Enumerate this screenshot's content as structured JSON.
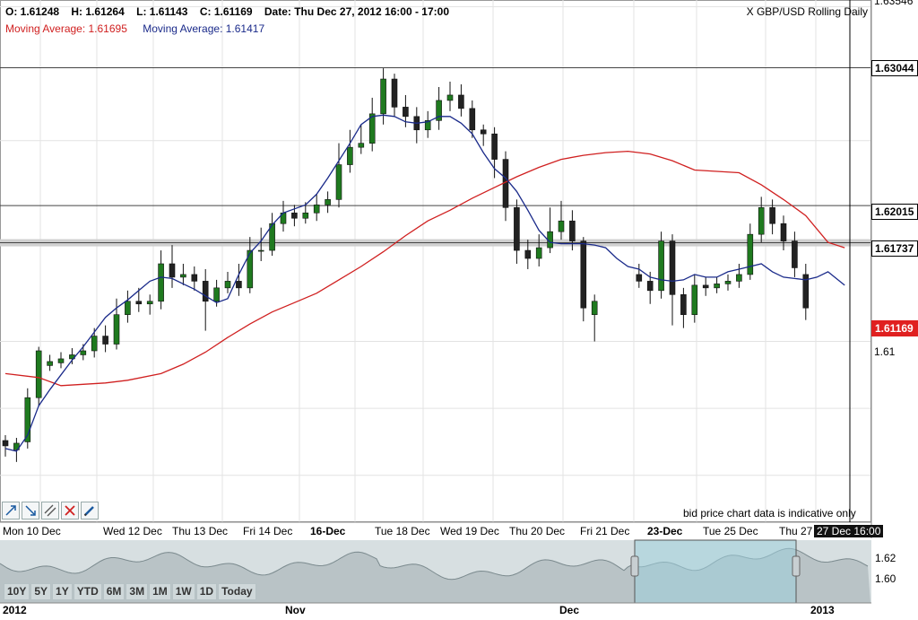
{
  "header": {
    "open": "O: 1.61248",
    "high": "H: 1.61264",
    "low": "L: 1.61143",
    "close": "C: 1.61169",
    "date": "Date: Thu Dec 27, 2012 16:00 - 17:00",
    "ma_red": "Moving Average: 1.61695",
    "ma_blue": "Moving Average: 1.61417",
    "title": "X GBP/USD Rolling Daily"
  },
  "disclaimer": "bid price chart data is indicative only",
  "colors": {
    "bull": "#1f7a1f",
    "bear": "#111111",
    "ma_fast": "#1a2a8a",
    "ma_slow": "#d02020",
    "accent": "#e02020"
  },
  "tools": [
    "trend-up-icon",
    "trend-down-icon",
    "parallel-lines-icon",
    "delete-x-icon",
    "pencil-icon"
  ],
  "x_labels": [
    {
      "text": "Mon 10 Dec",
      "style": ""
    },
    {
      "text": "Wed 12 Dec",
      "style": ""
    },
    {
      "text": "Thu 13 Dec",
      "style": ""
    },
    {
      "text": "Fri 14 Dec",
      "style": ""
    },
    {
      "text": "16-Dec",
      "style": "bold"
    },
    {
      "text": "Tue 18 Dec",
      "style": ""
    },
    {
      "text": "Wed 19 Dec",
      "style": ""
    },
    {
      "text": "Thu 20 Dec",
      "style": ""
    },
    {
      "text": "Fri 21 Dec",
      "style": ""
    },
    {
      "text": "23-Dec",
      "style": "bold"
    },
    {
      "text": "Tue 25 Dec",
      "style": ""
    },
    {
      "text": "Thu 27",
      "style": ""
    },
    {
      "text": "27 Dec 16:00",
      "style": "hi"
    }
  ],
  "y_axis": {
    "top_partial": "1.63546",
    "levels": [
      {
        "text": "1.63044",
        "value": 1.63044,
        "style": "box"
      },
      {
        "text": "1.62015",
        "value": 1.62015,
        "style": "box"
      },
      {
        "text": "1.61737",
        "value": 1.61737,
        "style": "box"
      },
      {
        "text": "1.61169",
        "value": 1.61169,
        "style": "last"
      },
      {
        "text": "1.61",
        "value": 1.61,
        "style": "plain"
      }
    ]
  },
  "navigator": {
    "ranges": [
      "10Y",
      "5Y",
      "1Y",
      "YTD",
      "6M",
      "3M",
      "1M",
      "1W",
      "1D",
      "Today"
    ],
    "x_labels": [
      "2012",
      "Nov",
      "Dec",
      "2013"
    ],
    "y_labels": [
      "1.62",
      "1.60"
    ]
  },
  "chart_data": {
    "type": "candlestick",
    "symbol": "X GBP/USD Rolling Daily",
    "ylim": [
      1.5965,
      1.6355
    ],
    "horizontal_levels": [
      1.63044,
      1.62015,
      1.61737
    ],
    "series": [
      {
        "name": "Moving Average: 1.61695",
        "values": [
          [
            0,
            1.6076
          ],
          [
            3,
            1.6073
          ],
          [
            5,
            1.6067
          ],
          [
            7,
            1.6068
          ],
          [
            9,
            1.6069
          ],
          [
            11,
            1.6071
          ],
          [
            14,
            1.6076
          ],
          [
            16,
            1.6083
          ],
          [
            18,
            1.6092
          ],
          [
            20,
            1.6103
          ],
          [
            22,
            1.6113
          ],
          [
            24,
            1.6122
          ],
          [
            26,
            1.6129
          ],
          [
            28,
            1.6136
          ],
          [
            30,
            1.6146
          ],
          [
            32,
            1.6156
          ],
          [
            34,
            1.6167
          ],
          [
            36,
            1.6179
          ],
          [
            38,
            1.619
          ],
          [
            40,
            1.6198
          ],
          [
            42,
            1.6207
          ],
          [
            44,
            1.6215
          ],
          [
            46,
            1.6223
          ],
          [
            48,
            1.623
          ],
          [
            50,
            1.6236
          ],
          [
            52,
            1.6239
          ],
          [
            54,
            1.6241
          ],
          [
            56,
            1.6242
          ],
          [
            58,
            1.624
          ],
          [
            60,
            1.6235
          ],
          [
            62,
            1.6228
          ],
          [
            64,
            1.6227
          ],
          [
            66,
            1.6226
          ],
          [
            68,
            1.6217
          ],
          [
            70,
            1.6206
          ],
          [
            72,
            1.6194
          ],
          [
            74,
            1.6174
          ],
          [
            75.5,
            1.617
          ]
        ]
      },
      {
        "name": "Moving Average: 1.61417",
        "values": [
          [
            0,
            1.602
          ],
          [
            1,
            1.6018
          ],
          [
            2,
            1.603
          ],
          [
            3,
            1.6052
          ],
          [
            4,
            1.6064
          ],
          [
            5,
            1.6075
          ],
          [
            6,
            1.6086
          ],
          [
            7,
            1.6096
          ],
          [
            8,
            1.6107
          ],
          [
            9,
            1.6118
          ],
          [
            10,
            1.6125
          ],
          [
            11,
            1.6131
          ],
          [
            12,
            1.6138
          ],
          [
            13,
            1.6145
          ],
          [
            14,
            1.6148
          ],
          [
            15,
            1.6147
          ],
          [
            16,
            1.6143
          ],
          [
            17,
            1.6139
          ],
          [
            18,
            1.6134
          ],
          [
            19,
            1.6129
          ],
          [
            20,
            1.6132
          ],
          [
            21,
            1.615
          ],
          [
            22,
            1.6166
          ],
          [
            23,
            1.6175
          ],
          [
            24,
            1.6187
          ],
          [
            25,
            1.6196
          ],
          [
            26,
            1.6199
          ],
          [
            27,
            1.6202
          ],
          [
            28,
            1.621
          ],
          [
            29,
            1.6222
          ],
          [
            30,
            1.6235
          ],
          [
            31,
            1.6248
          ],
          [
            32,
            1.6262
          ],
          [
            33,
            1.6268
          ],
          [
            34,
            1.6269
          ],
          [
            35,
            1.6268
          ],
          [
            36,
            1.6264
          ],
          [
            37,
            1.6263
          ],
          [
            38,
            1.6264
          ],
          [
            39,
            1.6268
          ],
          [
            40,
            1.6268
          ],
          [
            41,
            1.6263
          ],
          [
            42,
            1.6255
          ],
          [
            43,
            1.6241
          ],
          [
            44,
            1.6229
          ],
          [
            45,
            1.6222
          ],
          [
            46,
            1.6212
          ],
          [
            47,
            1.6198
          ],
          [
            48,
            1.6183
          ],
          [
            49,
            1.6174
          ],
          [
            50,
            1.6173
          ],
          [
            51,
            1.6173
          ],
          [
            52,
            1.6173
          ],
          [
            53,
            1.6172
          ],
          [
            54,
            1.617
          ],
          [
            55,
            1.6162
          ],
          [
            56,
            1.6156
          ],
          [
            57,
            1.6154
          ],
          [
            58,
            1.6148
          ],
          [
            59,
            1.6146
          ],
          [
            60,
            1.6145
          ],
          [
            61,
            1.6146
          ],
          [
            62,
            1.615
          ],
          [
            63,
            1.6148
          ],
          [
            64,
            1.6148
          ],
          [
            65,
            1.6152
          ],
          [
            66,
            1.6154
          ],
          [
            67,
            1.6156
          ],
          [
            68,
            1.6158
          ],
          [
            69,
            1.6152
          ],
          [
            70,
            1.6148
          ],
          [
            71,
            1.6147
          ],
          [
            72,
            1.6146
          ],
          [
            73,
            1.6148
          ],
          [
            74,
            1.6152
          ],
          [
            75.5,
            1.6142
          ]
        ]
      }
    ],
    "candles": [
      {
        "x": 0,
        "o": 1.6026,
        "c": 1.6022,
        "h": 1.603,
        "l": 1.6014
      },
      {
        "x": 1,
        "o": 1.6019,
        "c": 1.6024,
        "h": 1.6028,
        "l": 1.601
      },
      {
        "x": 2,
        "o": 1.6025,
        "c": 1.6058,
        "h": 1.6065,
        "l": 1.602
      },
      {
        "x": 3,
        "o": 1.6058,
        "c": 1.6093,
        "h": 1.6096,
        "l": 1.6052
      },
      {
        "x": 4,
        "o": 1.6082,
        "c": 1.6085,
        "h": 1.609,
        "l": 1.6078
      },
      {
        "x": 5,
        "o": 1.6084,
        "c": 1.6087,
        "h": 1.6092,
        "l": 1.608
      },
      {
        "x": 6,
        "o": 1.6087,
        "c": 1.609,
        "h": 1.6095,
        "l": 1.6083
      },
      {
        "x": 7,
        "o": 1.609,
        "c": 1.6093,
        "h": 1.6098,
        "l": 1.6086
      },
      {
        "x": 8,
        "o": 1.6093,
        "c": 1.6104,
        "h": 1.611,
        "l": 1.6088
      },
      {
        "x": 9,
        "o": 1.6104,
        "c": 1.6098,
        "h": 1.6112,
        "l": 1.6092
      },
      {
        "x": 10,
        "o": 1.6098,
        "c": 1.612,
        "h": 1.6132,
        "l": 1.6094
      },
      {
        "x": 11,
        "o": 1.612,
        "c": 1.613,
        "h": 1.6138,
        "l": 1.6114
      },
      {
        "x": 12,
        "o": 1.613,
        "c": 1.6128,
        "h": 1.614,
        "l": 1.6122
      },
      {
        "x": 13,
        "o": 1.6128,
        "c": 1.613,
        "h": 1.6135,
        "l": 1.612
      },
      {
        "x": 14,
        "o": 1.613,
        "c": 1.6158,
        "h": 1.6168,
        "l": 1.6124
      },
      {
        "x": 15,
        "o": 1.6158,
        "c": 1.6148,
        "h": 1.6172,
        "l": 1.614
      },
      {
        "x": 16,
        "o": 1.6148,
        "c": 1.615,
        "h": 1.6158,
        "l": 1.6142
      },
      {
        "x": 17,
        "o": 1.615,
        "c": 1.6145,
        "h": 1.6156,
        "l": 1.6138
      },
      {
        "x": 18,
        "o": 1.6145,
        "c": 1.613,
        "h": 1.6154,
        "l": 1.6108
      },
      {
        "x": 19,
        "o": 1.613,
        "c": 1.614,
        "h": 1.6146,
        "l": 1.6126
      },
      {
        "x": 20,
        "o": 1.614,
        "c": 1.6145,
        "h": 1.6152,
        "l": 1.6136
      },
      {
        "x": 21,
        "o": 1.6145,
        "c": 1.614,
        "h": 1.6158,
        "l": 1.6134
      },
      {
        "x": 22,
        "o": 1.614,
        "c": 1.6168,
        "h": 1.6178,
        "l": 1.6136
      },
      {
        "x": 23,
        "o": 1.6168,
        "c": 1.6168,
        "h": 1.6185,
        "l": 1.616
      },
      {
        "x": 24,
        "o": 1.6168,
        "c": 1.6188,
        "h": 1.6196,
        "l": 1.6164
      },
      {
        "x": 25,
        "o": 1.6188,
        "c": 1.6196,
        "h": 1.6205,
        "l": 1.6182
      },
      {
        "x": 26,
        "o": 1.6196,
        "c": 1.6192,
        "h": 1.6202,
        "l": 1.6186
      },
      {
        "x": 27,
        "o": 1.6192,
        "c": 1.6196,
        "h": 1.6204,
        "l": 1.6188
      },
      {
        "x": 28,
        "o": 1.6196,
        "c": 1.6202,
        "h": 1.621,
        "l": 1.619
      },
      {
        "x": 29,
        "o": 1.6202,
        "c": 1.6206,
        "h": 1.6212,
        "l": 1.6196
      },
      {
        "x": 30,
        "o": 1.6206,
        "c": 1.6232,
        "h": 1.6248,
        "l": 1.62
      },
      {
        "x": 31,
        "o": 1.6232,
        "c": 1.6245,
        "h": 1.6258,
        "l": 1.6226
      },
      {
        "x": 32,
        "o": 1.6245,
        "c": 1.6248,
        "h": 1.6262,
        "l": 1.624
      },
      {
        "x": 33,
        "o": 1.6248,
        "c": 1.627,
        "h": 1.6282,
        "l": 1.6242
      },
      {
        "x": 34,
        "o": 1.627,
        "c": 1.6296,
        "h": 1.6304,
        "l": 1.6262
      },
      {
        "x": 35,
        "o": 1.6296,
        "c": 1.6275,
        "h": 1.63,
        "l": 1.6268
      },
      {
        "x": 36,
        "o": 1.6275,
        "c": 1.6268,
        "h": 1.6284,
        "l": 1.626
      },
      {
        "x": 37,
        "o": 1.6268,
        "c": 1.6258,
        "h": 1.6275,
        "l": 1.6248
      },
      {
        "x": 38,
        "o": 1.6258,
        "c": 1.6265,
        "h": 1.6272,
        "l": 1.6252
      },
      {
        "x": 39,
        "o": 1.6265,
        "c": 1.628,
        "h": 1.629,
        "l": 1.6258
      },
      {
        "x": 40,
        "o": 1.628,
        "c": 1.6284,
        "h": 1.6294,
        "l": 1.6272
      },
      {
        "x": 41,
        "o": 1.6284,
        "c": 1.6274,
        "h": 1.6292,
        "l": 1.6268
      },
      {
        "x": 42,
        "o": 1.6274,
        "c": 1.6258,
        "h": 1.628,
        "l": 1.6252
      },
      {
        "x": 43,
        "o": 1.6258,
        "c": 1.6255,
        "h": 1.6262,
        "l": 1.6246
      },
      {
        "x": 44,
        "o": 1.6255,
        "c": 1.6236,
        "h": 1.626,
        "l": 1.6222
      },
      {
        "x": 45,
        "o": 1.6236,
        "c": 1.62,
        "h": 1.6242,
        "l": 1.619
      },
      {
        "x": 46,
        "o": 1.62,
        "c": 1.6168,
        "h": 1.6206,
        "l": 1.6158
      },
      {
        "x": 47,
        "o": 1.6168,
        "c": 1.6162,
        "h": 1.6176,
        "l": 1.6154
      },
      {
        "x": 48,
        "o": 1.6162,
        "c": 1.617,
        "h": 1.618,
        "l": 1.6156
      },
      {
        "x": 49,
        "o": 1.617,
        "c": 1.6182,
        "h": 1.62,
        "l": 1.6166
      },
      {
        "x": 50,
        "o": 1.6182,
        "c": 1.619,
        "h": 1.6205,
        "l": 1.6176
      },
      {
        "x": 51,
        "o": 1.619,
        "c": 1.6175,
        "h": 1.6198,
        "l": 1.6168
      },
      {
        "x": 52,
        "o": 1.6175,
        "c": 1.6125,
        "h": 1.6178,
        "l": 1.6115
      },
      {
        "x": 53,
        "o": 1.612,
        "c": 1.613,
        "h": 1.6135,
        "l": 1.61
      },
      {
        "x": 57,
        "o": 1.615,
        "c": 1.6145,
        "h": 1.6158,
        "l": 1.614
      },
      {
        "x": 58,
        "o": 1.6145,
        "c": 1.6138,
        "h": 1.6152,
        "l": 1.6128
      },
      {
        "x": 59,
        "o": 1.6138,
        "c": 1.6175,
        "h": 1.6182,
        "l": 1.6132
      },
      {
        "x": 60,
        "o": 1.6175,
        "c": 1.6135,
        "h": 1.618,
        "l": 1.6112
      },
      {
        "x": 61,
        "o": 1.6135,
        "c": 1.612,
        "h": 1.614,
        "l": 1.611
      },
      {
        "x": 62,
        "o": 1.612,
        "c": 1.6142,
        "h": 1.615,
        "l": 1.6114
      },
      {
        "x": 63,
        "o": 1.6142,
        "c": 1.614,
        "h": 1.6148,
        "l": 1.6134
      },
      {
        "x": 64,
        "o": 1.614,
        "c": 1.6143,
        "h": 1.6148,
        "l": 1.6136
      },
      {
        "x": 65,
        "o": 1.6143,
        "c": 1.6145,
        "h": 1.615,
        "l": 1.6138
      },
      {
        "x": 66,
        "o": 1.6145,
        "c": 1.615,
        "h": 1.6158,
        "l": 1.614
      },
      {
        "x": 67,
        "o": 1.615,
        "c": 1.618,
        "h": 1.6188,
        "l": 1.6146
      },
      {
        "x": 68,
        "o": 1.618,
        "c": 1.62,
        "h": 1.6208,
        "l": 1.6174
      },
      {
        "x": 69,
        "o": 1.62,
        "c": 1.6188,
        "h": 1.6206,
        "l": 1.618
      },
      {
        "x": 70,
        "o": 1.6188,
        "c": 1.6175,
        "h": 1.6194,
        "l": 1.6168
      },
      {
        "x": 71,
        "o": 1.6175,
        "c": 1.6155,
        "h": 1.6182,
        "l": 1.6148
      },
      {
        "x": 72,
        "o": 1.615,
        "c": 1.6125,
        "h": 1.6158,
        "l": 1.6116
      }
    ]
  }
}
